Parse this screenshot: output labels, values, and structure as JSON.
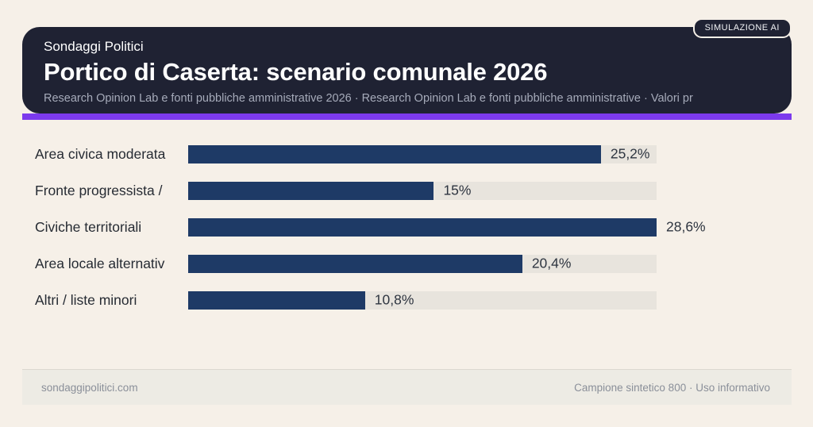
{
  "badge": {
    "label": "SIMULAZIONE AI"
  },
  "header": {
    "kicker": "Sondaggi Politici",
    "title": "Portico di Caserta: scenario comunale 2026",
    "subtitle": "Research Opinion Lab e fonti pubbliche amministrative 2026 · Research Opinion Lab e fonti pubbliche amministrative · Valori pr"
  },
  "chart_data": {
    "type": "bar",
    "orientation": "horizontal",
    "title": "Portico di Caserta: scenario comunale 2026",
    "categories": [
      "Area civica moderata",
      "Fronte progressista /",
      "Civiche territoriali",
      "Area locale alternativ",
      "Altri / liste minori"
    ],
    "values": [
      25.2,
      15,
      28.6,
      20.4,
      10.8
    ],
    "value_labels": [
      "25,2%",
      "15%",
      "28,6%",
      "20,4%",
      "10,8%"
    ],
    "unit": "%",
    "xlim": [
      0,
      28.6
    ],
    "grid": false,
    "legend": false
  },
  "footer": {
    "left": "sondaggipolitici.com",
    "right": "Campione sintetico 800 · Uso informativo"
  },
  "colors": {
    "page_bg": "#f6f0e8",
    "header_bg": "#1f2233",
    "accent": "#7c3aed",
    "bar": "#1e3a66",
    "track": "#e8e4dd",
    "footer_bg": "#edebe4"
  }
}
